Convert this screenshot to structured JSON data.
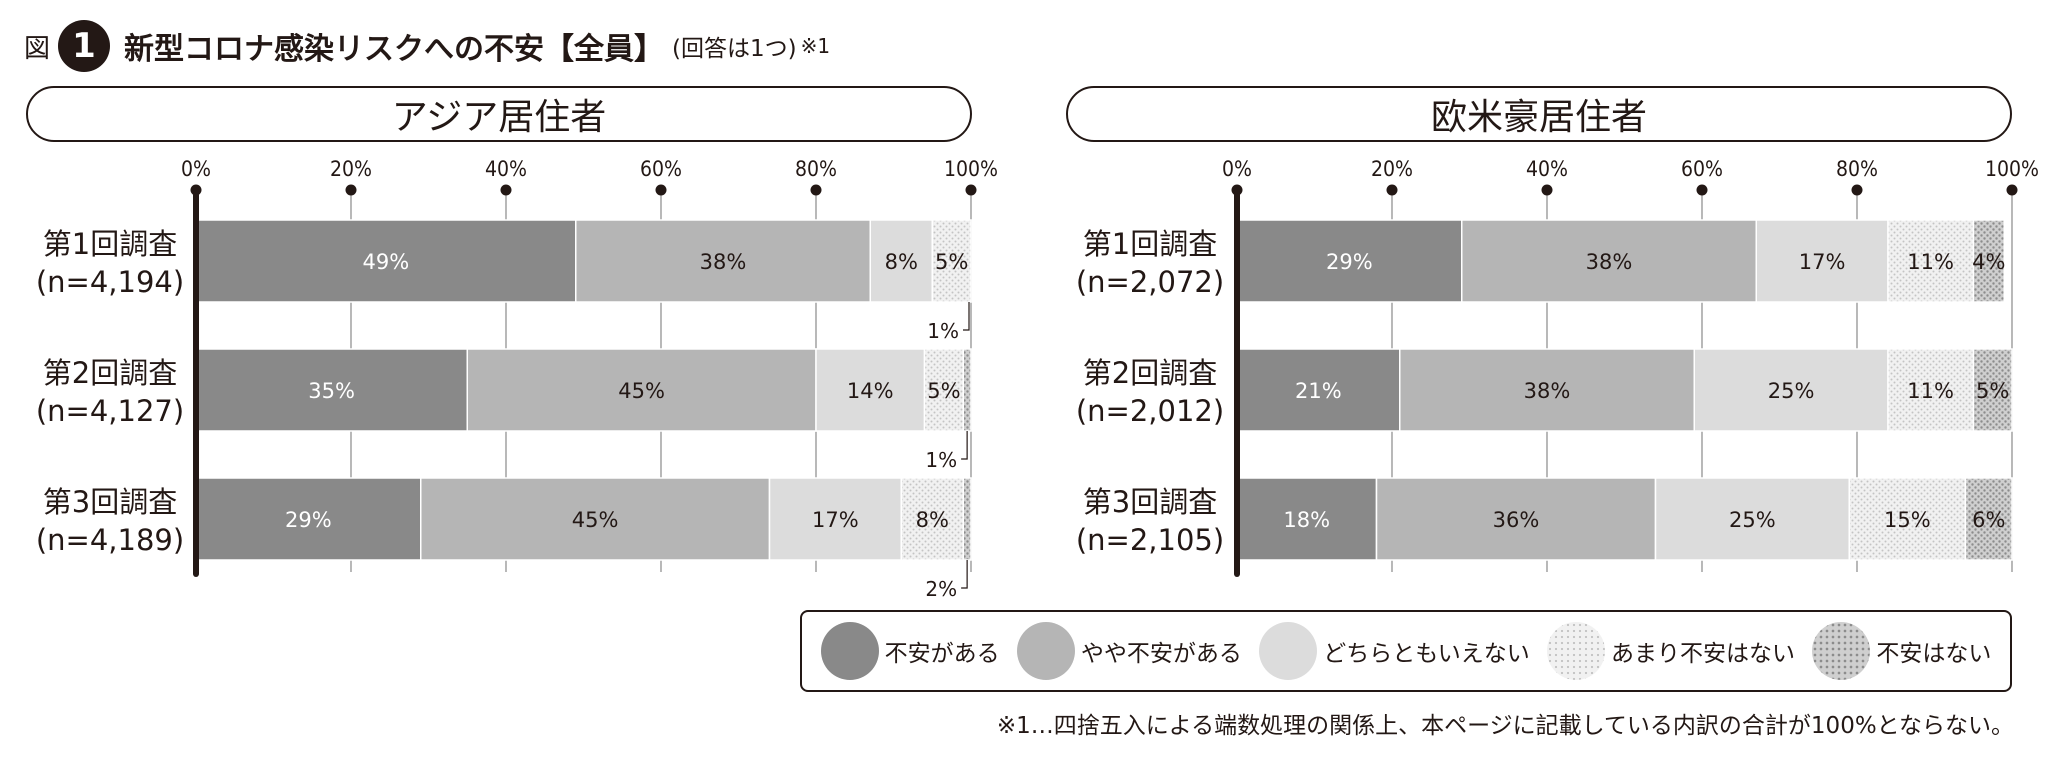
{
  "header": {
    "prefix": "図",
    "number": "1",
    "title": "新型コロナ感染リスクへの不安【全員】",
    "subtitle": "(回答は1つ)",
    "note_mark": "※1"
  },
  "colors": {
    "anxious": "#898989",
    "somewhat": "#b5b5b5",
    "neutral": "#dcdcdc",
    "not_much": "#eeeeee",
    "not_at_all": "#c2c2c2",
    "ink": "#231815"
  },
  "legend": [
    {
      "key": "anxious",
      "label": "不安がある"
    },
    {
      "key": "somewhat",
      "label": "やや不安がある"
    },
    {
      "key": "neutral",
      "label": "どちらともいえない"
    },
    {
      "key": "not_much",
      "label": "あまり不安はない"
    },
    {
      "key": "not_at_all",
      "label": "不安はない"
    }
  ],
  "footnote": "※1…四捨五入による端数処理の関係上、本ページに記載している内訳の合計が100%とならない。",
  "chart_data": [
    {
      "type": "bar",
      "title": "アジア居住者",
      "orientation": "horizontal",
      "stacked": true,
      "xlim": [
        0,
        100
      ],
      "ticks": [
        "0%",
        "20%",
        "40%",
        "60%",
        "80%",
        "100%"
      ],
      "categories": [
        "第1回調査",
        "第2回調査",
        "第3回調査"
      ],
      "sample_sizes": [
        "(n=4,194)",
        "(n=4,127)",
        "(n=4,189)"
      ],
      "series": [
        {
          "key": "anxious",
          "values": [
            49,
            35,
            29
          ],
          "labels": [
            "49%",
            "35%",
            "29%"
          ]
        },
        {
          "key": "somewhat",
          "values": [
            38,
            45,
            45
          ],
          "labels": [
            "38%",
            "45%",
            "45%"
          ]
        },
        {
          "key": "neutral",
          "values": [
            8,
            14,
            17
          ],
          "labels": [
            "8%",
            "14%",
            "17%"
          ]
        },
        {
          "key": "not_much",
          "values": [
            5,
            5,
            8
          ],
          "labels": [
            "5%",
            "5%",
            "8%"
          ]
        },
        {
          "key": "not_at_all",
          "values": [
            1,
            1,
            2
          ],
          "labels": [
            "1%",
            "1%",
            "2%"
          ],
          "label_outside": true
        }
      ]
    },
    {
      "type": "bar",
      "title": "欧米豪居住者",
      "orientation": "horizontal",
      "stacked": true,
      "xlim": [
        0,
        100
      ],
      "ticks": [
        "0%",
        "20%",
        "40%",
        "60%",
        "80%",
        "100%"
      ],
      "categories": [
        "第1回調査",
        "第2回調査",
        "第3回調査"
      ],
      "sample_sizes": [
        "(n=2,072)",
        "(n=2,012)",
        "(n=2,105)"
      ],
      "series": [
        {
          "key": "anxious",
          "values": [
            29,
            21,
            18
          ],
          "labels": [
            "29%",
            "21%",
            "18%"
          ]
        },
        {
          "key": "somewhat",
          "values": [
            38,
            38,
            36
          ],
          "labels": [
            "38%",
            "38%",
            "36%"
          ]
        },
        {
          "key": "neutral",
          "values": [
            17,
            25,
            25
          ],
          "labels": [
            "17%",
            "25%",
            "25%"
          ]
        },
        {
          "key": "not_much",
          "values": [
            11,
            11,
            15
          ],
          "labels": [
            "11%",
            "11%",
            "15%"
          ]
        },
        {
          "key": "not_at_all",
          "values": [
            4,
            5,
            6
          ],
          "labels": [
            "4%",
            "5%",
            "6%"
          ]
        }
      ]
    }
  ]
}
